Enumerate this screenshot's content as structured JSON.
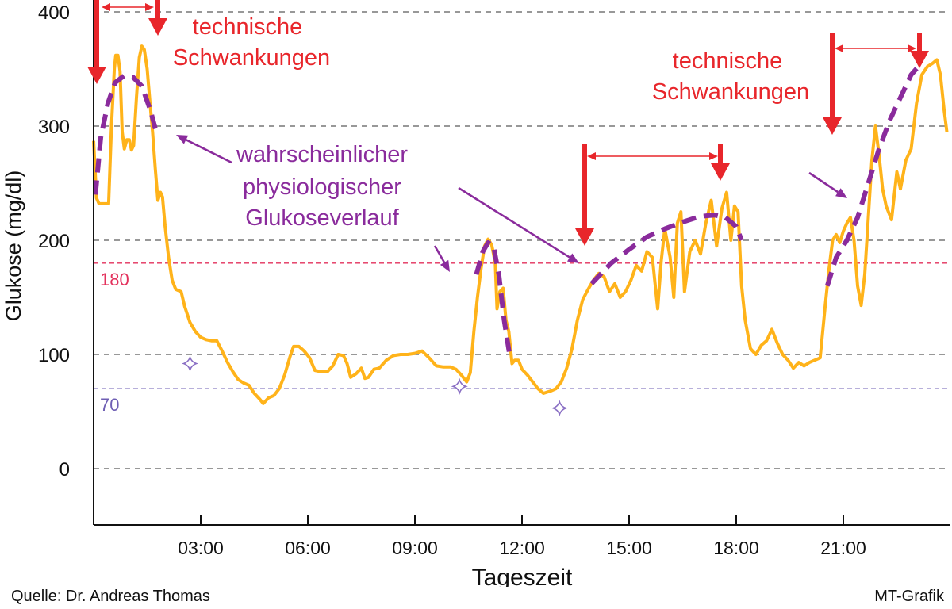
{
  "chart_data": {
    "type": "line",
    "xlabel": "Tageszeit",
    "ylabel": "Glukose (mg/dl)",
    "xlim": [
      0,
      24
    ],
    "ylim": [
      -50,
      400
    ],
    "x_ticks": [
      {
        "value": 3,
        "label": "03:00"
      },
      {
        "value": 6,
        "label": "06:00"
      },
      {
        "value": 9,
        "label": "09:00"
      },
      {
        "value": 12,
        "label": "12:00"
      },
      {
        "value": 15,
        "label": "15:00"
      },
      {
        "value": 18,
        "label": "18:00"
      },
      {
        "value": 21,
        "label": "21:00"
      }
    ],
    "y_ticks": [
      0,
      100,
      200,
      300,
      400
    ],
    "grid": "horizontal dashed at y ticks",
    "reference_lines": [
      {
        "value": 180,
        "label": "180",
        "color": "#e3315c"
      },
      {
        "value": 70,
        "label": "70",
        "color": "#6f5fb4"
      }
    ],
    "series": [
      {
        "color": "#ffb31a",
        "style": "solid",
        "points": [
          [
            0,
            287
          ],
          [
            0.08,
            237
          ],
          [
            0.15,
            232
          ],
          [
            0.3,
            232
          ],
          [
            0.42,
            232
          ],
          [
            0.5,
            300
          ],
          [
            0.58,
            350
          ],
          [
            0.62,
            362
          ],
          [
            0.68,
            362
          ],
          [
            0.74,
            348
          ],
          [
            0.8,
            295
          ],
          [
            0.86,
            280
          ],
          [
            0.93,
            288
          ],
          [
            1.0,
            288
          ],
          [
            1.06,
            279
          ],
          [
            1.12,
            283
          ],
          [
            1.2,
            325
          ],
          [
            1.28,
            360
          ],
          [
            1.35,
            370
          ],
          [
            1.42,
            367
          ],
          [
            1.5,
            350
          ],
          [
            1.58,
            320
          ],
          [
            1.65,
            295
          ],
          [
            1.73,
            262
          ],
          [
            1.8,
            235
          ],
          [
            1.87,
            242
          ],
          [
            1.93,
            238
          ],
          [
            2.0,
            213
          ],
          [
            2.1,
            185
          ],
          [
            2.2,
            165
          ],
          [
            2.3,
            157
          ],
          [
            2.45,
            155
          ],
          [
            2.55,
            142
          ],
          [
            2.7,
            128
          ],
          [
            2.85,
            120
          ],
          [
            3.0,
            115
          ],
          [
            3.15,
            113
          ],
          [
            3.3,
            112
          ],
          [
            3.45,
            112
          ],
          [
            3.6,
            103
          ],
          [
            3.75,
            93
          ],
          [
            3.9,
            85
          ],
          [
            4.05,
            78
          ],
          [
            4.2,
            75
          ],
          [
            4.35,
            73
          ],
          [
            4.5,
            66
          ],
          [
            4.65,
            61
          ],
          [
            4.75,
            57
          ],
          [
            4.9,
            62
          ],
          [
            5.05,
            64
          ],
          [
            5.2,
            70
          ],
          [
            5.35,
            82
          ],
          [
            5.5,
            98
          ],
          [
            5.6,
            107
          ],
          [
            5.75,
            107
          ],
          [
            5.9,
            103
          ],
          [
            6.05,
            97
          ],
          [
            6.2,
            86
          ],
          [
            6.35,
            85
          ],
          [
            6.55,
            85
          ],
          [
            6.7,
            90
          ],
          [
            6.85,
            100
          ],
          [
            7.0,
            99
          ],
          [
            7.1,
            92
          ],
          [
            7.2,
            80
          ],
          [
            7.35,
            83
          ],
          [
            7.5,
            88
          ],
          [
            7.6,
            79
          ],
          [
            7.7,
            80
          ],
          [
            7.85,
            87
          ],
          [
            8.0,
            88
          ],
          [
            8.2,
            95
          ],
          [
            8.4,
            99
          ],
          [
            8.6,
            100
          ],
          [
            8.8,
            100
          ],
          [
            9.0,
            101
          ],
          [
            9.2,
            103
          ],
          [
            9.4,
            97
          ],
          [
            9.6,
            90
          ],
          [
            9.8,
            89
          ],
          [
            10.0,
            89
          ],
          [
            10.15,
            87
          ],
          [
            10.3,
            82
          ],
          [
            10.45,
            76
          ],
          [
            10.55,
            84
          ],
          [
            10.65,
            120
          ],
          [
            10.75,
            150
          ],
          [
            10.85,
            175
          ],
          [
            10.95,
            195
          ],
          [
            11.05,
            201
          ],
          [
            11.15,
            196
          ],
          [
            11.25,
            180
          ],
          [
            11.3,
            140
          ],
          [
            11.38,
            155
          ],
          [
            11.47,
            158
          ],
          [
            11.55,
            130
          ],
          [
            11.63,
            120
          ],
          [
            11.72,
            92
          ],
          [
            11.8,
            95
          ],
          [
            11.9,
            95
          ],
          [
            12.0,
            87
          ],
          [
            12.15,
            82
          ],
          [
            12.3,
            76
          ],
          [
            12.45,
            70
          ],
          [
            12.6,
            66
          ],
          [
            12.8,
            68
          ],
          [
            12.95,
            70
          ],
          [
            13.1,
            76
          ],
          [
            13.25,
            88
          ],
          [
            13.4,
            105
          ],
          [
            13.55,
            130
          ],
          [
            13.7,
            148
          ],
          [
            13.85,
            157
          ],
          [
            14.0,
            165
          ],
          [
            14.15,
            171
          ],
          [
            14.3,
            168
          ],
          [
            14.45,
            155
          ],
          [
            14.6,
            162
          ],
          [
            14.75,
            150
          ],
          [
            14.9,
            155
          ],
          [
            15.05,
            165
          ],
          [
            15.2,
            178
          ],
          [
            15.35,
            173
          ],
          [
            15.5,
            190
          ],
          [
            15.65,
            185
          ],
          [
            15.8,
            140
          ],
          [
            15.9,
            182
          ],
          [
            16.0,
            210
          ],
          [
            16.15,
            185
          ],
          [
            16.25,
            150
          ],
          [
            16.35,
            215
          ],
          [
            16.45,
            225
          ],
          [
            16.55,
            155
          ],
          [
            16.7,
            190
          ],
          [
            16.85,
            200
          ],
          [
            17.0,
            188
          ],
          [
            17.15,
            215
          ],
          [
            17.3,
            235
          ],
          [
            17.45,
            195
          ],
          [
            17.6,
            228
          ],
          [
            17.73,
            242
          ],
          [
            17.85,
            200
          ],
          [
            17.95,
            230
          ],
          [
            18.05,
            225
          ],
          [
            18.15,
            160
          ],
          [
            18.25,
            130
          ],
          [
            18.4,
            105
          ],
          [
            18.55,
            100
          ],
          [
            18.7,
            108
          ],
          [
            18.85,
            112
          ],
          [
            19.0,
            122
          ],
          [
            19.15,
            110
          ],
          [
            19.3,
            100
          ],
          [
            19.45,
            95
          ],
          [
            19.6,
            88
          ],
          [
            19.75,
            93
          ],
          [
            19.9,
            90
          ],
          [
            20.05,
            93
          ],
          [
            20.2,
            95
          ],
          [
            20.35,
            97
          ],
          [
            20.5,
            145
          ],
          [
            20.6,
            175
          ],
          [
            20.7,
            200
          ],
          [
            20.8,
            205
          ],
          [
            20.9,
            198
          ],
          [
            21.0,
            208
          ],
          [
            21.1,
            215
          ],
          [
            21.2,
            220
          ],
          [
            21.3,
            200
          ],
          [
            21.4,
            160
          ],
          [
            21.5,
            143
          ],
          [
            21.6,
            170
          ],
          [
            21.7,
            220
          ],
          [
            21.8,
            270
          ],
          [
            21.9,
            300
          ],
          [
            22.0,
            275
          ],
          [
            22.1,
            245
          ],
          [
            22.2,
            230
          ],
          [
            22.35,
            218
          ],
          [
            22.5,
            260
          ],
          [
            22.6,
            245
          ],
          [
            22.75,
            270
          ],
          [
            22.9,
            280
          ],
          [
            23.05,
            320
          ],
          [
            23.2,
            345
          ],
          [
            23.35,
            352
          ],
          [
            23.5,
            355
          ],
          [
            23.62,
            358
          ],
          [
            23.72,
            345
          ],
          [
            23.82,
            315
          ],
          [
            23.9,
            295
          ]
        ]
      },
      {
        "color": "#8a2b9c",
        "style": "dashed",
        "points": [
          [
            0.05,
            240
          ],
          [
            0.2,
            290
          ],
          [
            0.4,
            320
          ],
          [
            0.6,
            338
          ],
          [
            0.85,
            344
          ],
          [
            1.1,
            343
          ],
          [
            1.35,
            335
          ],
          [
            1.6,
            313
          ],
          [
            1.75,
            295
          ]
        ]
      },
      {
        "color": "#8a2b9c",
        "style": "dashed",
        "points": [
          [
            10.72,
            170
          ],
          [
            10.9,
            190
          ],
          [
            11.05,
            198
          ],
          [
            11.2,
            195
          ],
          [
            11.35,
            170
          ],
          [
            11.5,
            130
          ],
          [
            11.65,
            100
          ]
        ]
      },
      {
        "color": "#8a2b9c",
        "style": "dashed",
        "points": [
          [
            13.95,
            162
          ],
          [
            14.5,
            180
          ],
          [
            15.0,
            192
          ],
          [
            15.5,
            203
          ],
          [
            16.0,
            210
          ],
          [
            16.5,
            216
          ],
          [
            17.0,
            221
          ],
          [
            17.4,
            222
          ],
          [
            17.7,
            220
          ],
          [
            18.0,
            212
          ],
          [
            18.15,
            200
          ]
        ]
      },
      {
        "color": "#8a2b9c",
        "style": "dashed",
        "points": [
          [
            20.55,
            160
          ],
          [
            20.8,
            185
          ],
          [
            21.1,
            200
          ],
          [
            21.4,
            220
          ],
          [
            21.7,
            250
          ],
          [
            22.0,
            280
          ],
          [
            22.3,
            305
          ],
          [
            22.6,
            325
          ],
          [
            22.9,
            345
          ],
          [
            23.1,
            352
          ]
        ]
      }
    ],
    "markers": [
      {
        "x": 2.7,
        "y": 92
      },
      {
        "x": 10.25,
        "y": 72
      },
      {
        "x": 13.05,
        "y": 53
      }
    ],
    "annotations": [
      {
        "text": "technische",
        "color": "#e8262b"
      },
      {
        "text": "Schwankungen",
        "color": "#e8262b"
      },
      {
        "text": "technische",
        "color": "#e8262b"
      },
      {
        "text": "Schwankungen",
        "color": "#e8262b"
      },
      {
        "text": "wahrscheinlicher",
        "color": "#8a2b9c"
      },
      {
        "text": "physiologischer",
        "color": "#8a2b9c"
      },
      {
        "text": "Glukoseverlauf",
        "color": "#8a2b9c"
      }
    ],
    "colors": {
      "glucose": "#ffb31a",
      "estimate": "#8a2b9c",
      "technical": "#e8262b",
      "limit_high": "#e3315c",
      "limit_low": "#6f5fb4"
    }
  },
  "footer": {
    "source": "Quelle: Dr. Andreas Thomas",
    "credit": "MT-Grafik"
  }
}
